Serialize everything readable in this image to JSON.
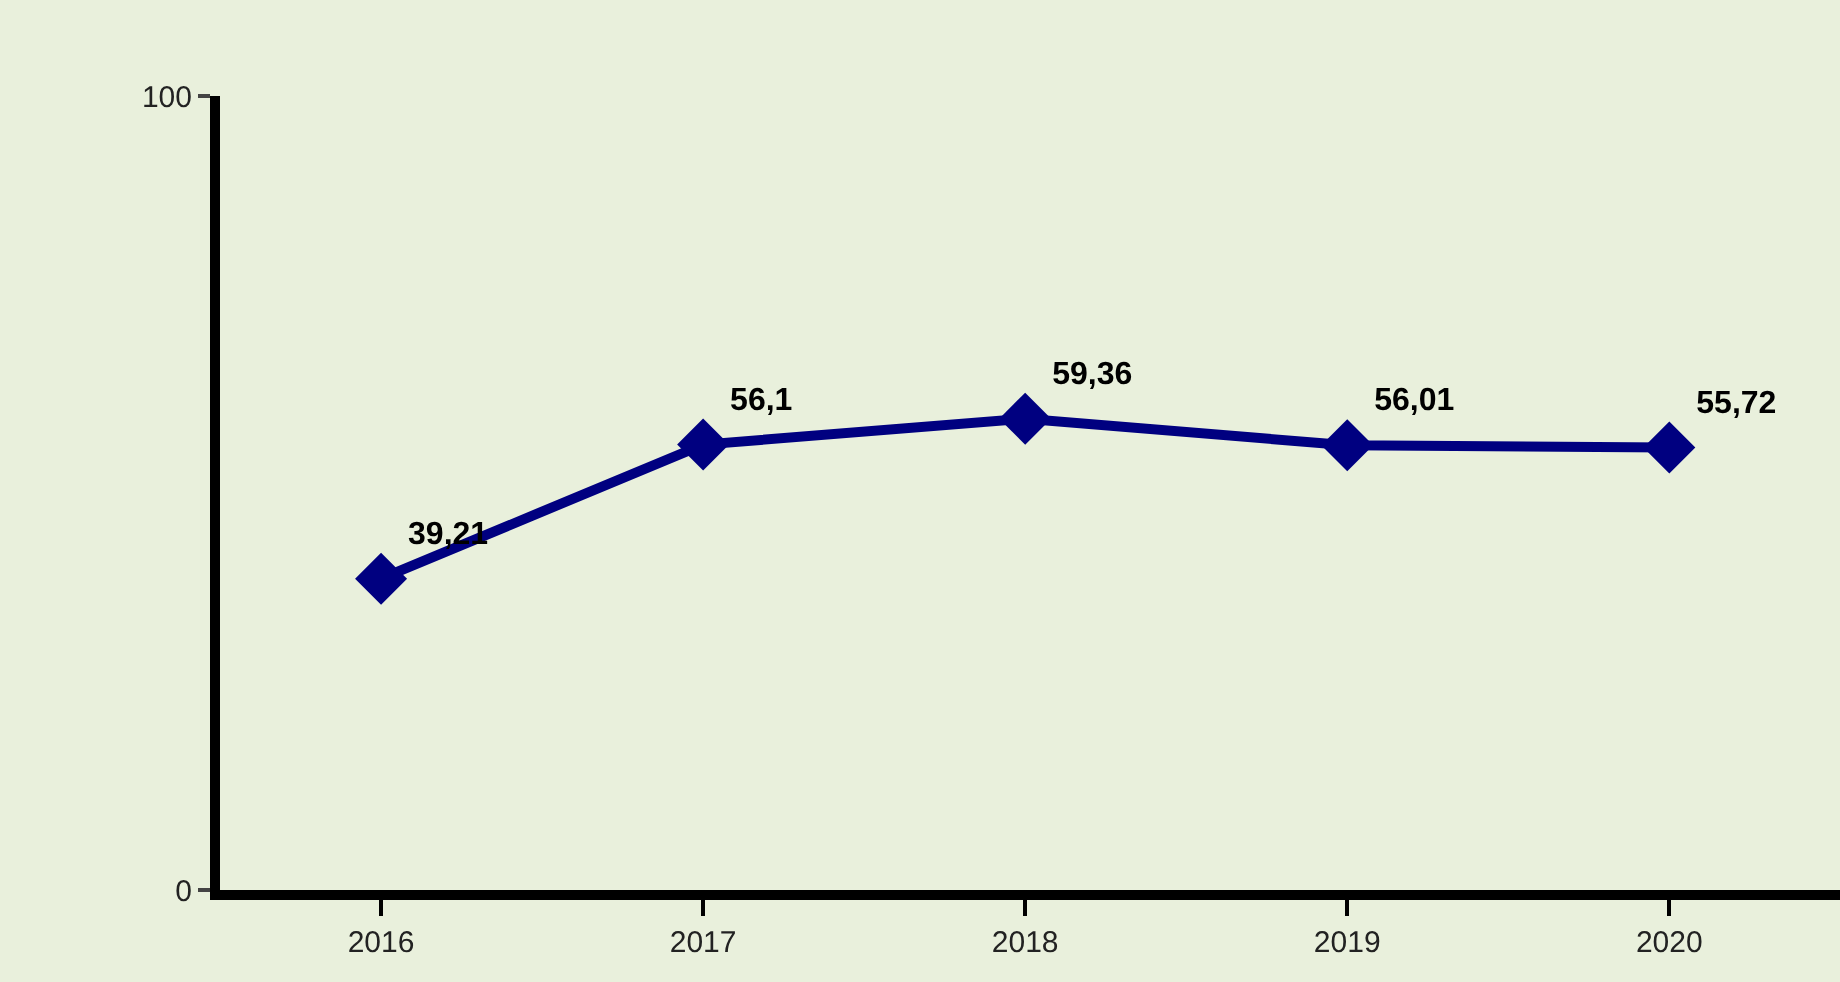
{
  "chart_data": {
    "type": "line",
    "categories": [
      "2016",
      "2017",
      "2018",
      "2019",
      "2020"
    ],
    "series": [
      {
        "color": "#000080",
        "values": [
          39.21,
          56.1,
          59.36,
          56.01,
          55.72
        ],
        "value_labels": [
          "39,21",
          "56,1",
          "59,36",
          "56,01",
          "55,72"
        ]
      }
    ],
    "ylim": [
      0,
      100
    ],
    "yticks": [
      0,
      100
    ],
    "marker": "diamond",
    "line_style": "solid",
    "grid": false
  }
}
